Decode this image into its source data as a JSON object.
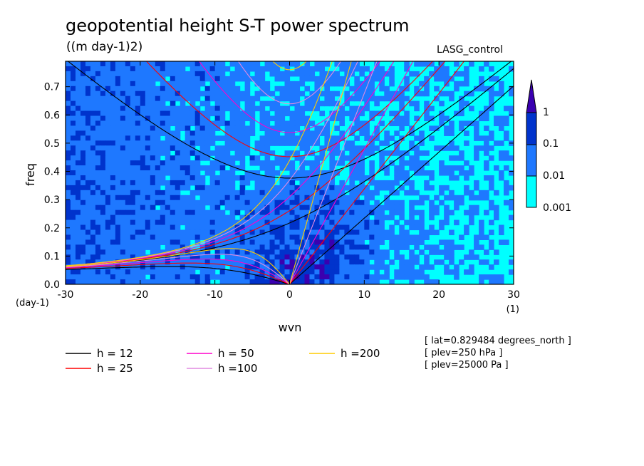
{
  "chart_data": {
    "type": "heatmap",
    "title": "geopotential height S-T power spectrum",
    "units": "((m day-1)2)",
    "run_label": "LASG_control",
    "xlabel": "wvn",
    "x_units": "(1)",
    "ylabel": "freq",
    "y_units": "(day-1)",
    "xlim": [
      -30,
      30
    ],
    "ylim": [
      0,
      0.79
    ],
    "x_ticks": [
      -30,
      -20,
      -10,
      0,
      10,
      20,
      30
    ],
    "x_tick_labels": [
      "-30",
      "-20",
      "-10",
      "0",
      "10",
      "20",
      "30"
    ],
    "y_ticks": [
      0.0,
      0.1,
      0.2,
      0.3,
      0.4,
      0.5,
      0.6,
      0.7
    ],
    "y_tick_labels": [
      "0.0",
      "0.1",
      "0.2",
      "0.3",
      "0.4",
      "0.5",
      "0.6",
      "0.7"
    ],
    "colorbar": {
      "levels": [
        0.001,
        0.01,
        0.1,
        1
      ],
      "labels": [
        "0.001",
        "0.01",
        "0.1",
        "1"
      ],
      "colors": [
        "#00ffff",
        "#1e78ff",
        "#0033cc",
        "#3a00b0"
      ]
    },
    "background_color": "#ffffff",
    "dispersion_curves": [
      {
        "name": "h = 12",
        "h": 12,
        "color": "#000000"
      },
      {
        "name": "h = 25",
        "h": 25,
        "color": "#ff0000"
      },
      {
        "name": "h = 50",
        "h": 50,
        "color": "#ff00cc"
      },
      {
        "name": "h =100",
        "h": 100,
        "color": "#e08ae0"
      },
      {
        "name": "h =200",
        "h": 200,
        "color": "#ffcc00"
      }
    ],
    "annotations": [
      "[ lat=0.829484 degrees_north ]",
      "[ plev=250 hPa ]",
      "[ plev=25000 Pa ]"
    ]
  }
}
